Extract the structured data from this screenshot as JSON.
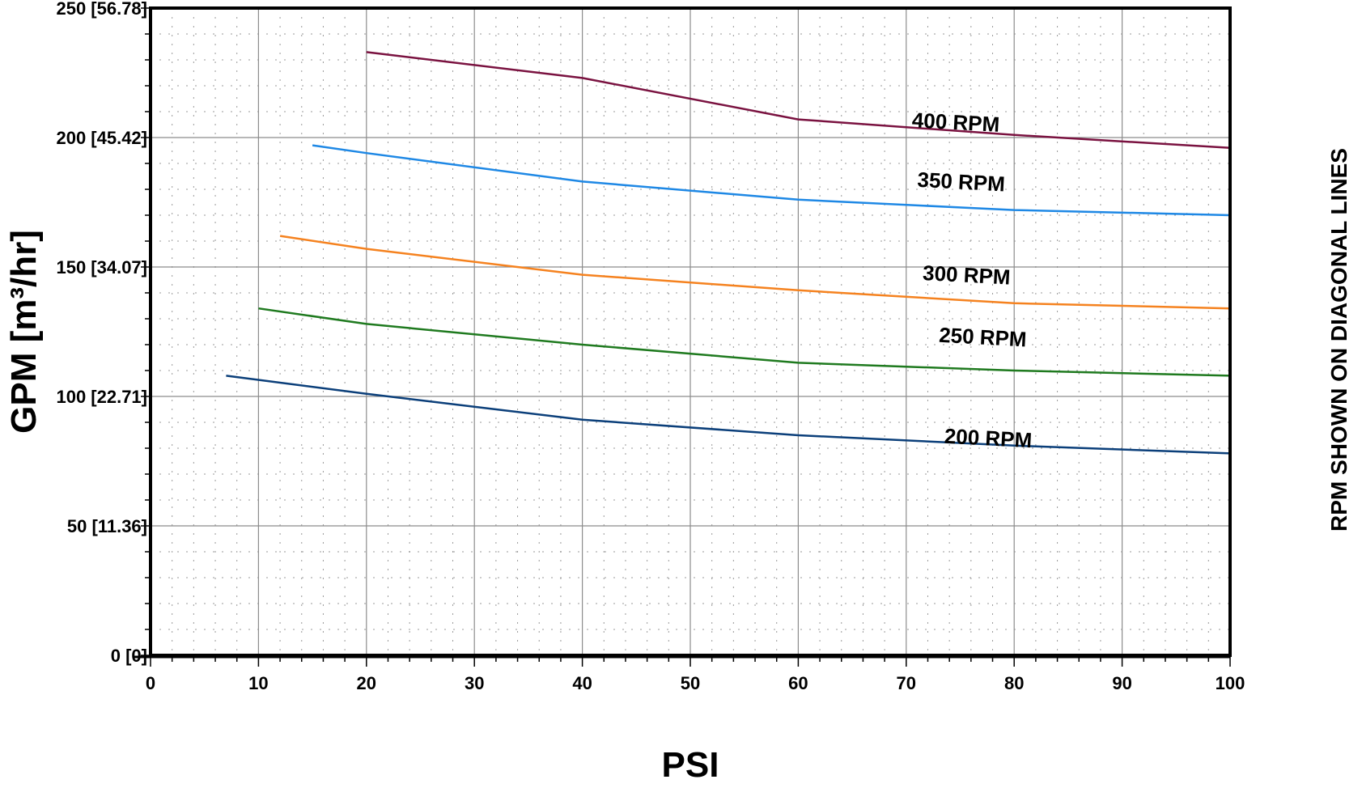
{
  "chart_data": {
    "type": "line",
    "xlabel": "PSI",
    "ylabel": "GPM [m³/hr]",
    "side_note": "RPM SHOWN ON DIAGONAL LINES",
    "xlim": [
      0,
      100
    ],
    "ylim": [
      0,
      250
    ],
    "grid": true,
    "x_ticks": [
      {
        "value": 0,
        "label": "0"
      },
      {
        "value": 10,
        "label": "10"
      },
      {
        "value": 20,
        "label": "20"
      },
      {
        "value": 30,
        "label": "30"
      },
      {
        "value": 40,
        "label": "40"
      },
      {
        "value": 50,
        "label": "50"
      },
      {
        "value": 60,
        "label": "60"
      },
      {
        "value": 70,
        "label": "70"
      },
      {
        "value": 80,
        "label": "80"
      },
      {
        "value": 90,
        "label": "90"
      },
      {
        "value": 100,
        "label": "100"
      }
    ],
    "y_ticks": [
      {
        "value": 0,
        "label": "0 [0]"
      },
      {
        "value": 50,
        "label": "50 [11.36]"
      },
      {
        "value": 100,
        "label": "100 [22.71]"
      },
      {
        "value": 150,
        "label": "150 [34.07]"
      },
      {
        "value": 200,
        "label": "200 [45.42]"
      },
      {
        "value": 250,
        "label": "250 [56.78]"
      }
    ],
    "series": [
      {
        "name": "200 RPM",
        "color": "#0b3f7a",
        "label_at": [
          73.5,
          82
        ],
        "points": [
          [
            7,
            108
          ],
          [
            20,
            101
          ],
          [
            40,
            91
          ],
          [
            60,
            85
          ],
          [
            80,
            81
          ],
          [
            100,
            78
          ]
        ]
      },
      {
        "name": "250 RPM",
        "color": "#1f7a1f",
        "label_at": [
          73,
          121
        ],
        "points": [
          [
            10,
            134
          ],
          [
            20,
            128
          ],
          [
            40,
            120
          ],
          [
            60,
            113
          ],
          [
            80,
            110
          ],
          [
            100,
            108
          ]
        ]
      },
      {
        "name": "300 RPM",
        "color": "#f5821f",
        "label_at": [
          71.5,
          145
        ],
        "points": [
          [
            12,
            162
          ],
          [
            20,
            157
          ],
          [
            40,
            147
          ],
          [
            60,
            141
          ],
          [
            80,
            136
          ],
          [
            100,
            134
          ]
        ]
      },
      {
        "name": "350 RPM",
        "color": "#1e88e5",
        "label_at": [
          71,
          181
        ],
        "points": [
          [
            15,
            197
          ],
          [
            20,
            194
          ],
          [
            40,
            183
          ],
          [
            60,
            176
          ],
          [
            80,
            172
          ],
          [
            100,
            170
          ]
        ]
      },
      {
        "name": "400 RPM",
        "color": "#7a1240",
        "label_at": [
          70.5,
          204
        ],
        "points": [
          [
            20,
            233
          ],
          [
            40,
            223
          ],
          [
            60,
            207
          ],
          [
            80,
            201
          ],
          [
            100,
            196
          ]
        ]
      }
    ]
  }
}
